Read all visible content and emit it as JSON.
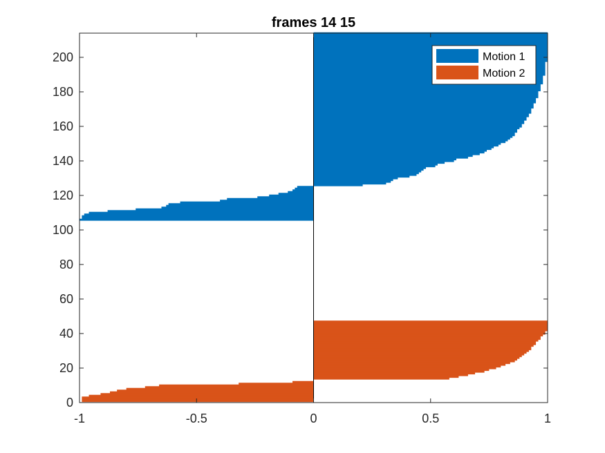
{
  "chart_data": {
    "type": "bar",
    "orientation": "horizontal",
    "title": "frames 14 15",
    "xlabel": "",
    "ylabel": "",
    "xlim": [
      -1,
      1
    ],
    "ylim": [
      0,
      214
    ],
    "xticks": [
      -1,
      -0.5,
      0,
      0.5,
      1
    ],
    "xtick_labels": [
      "-1",
      "-0.5",
      "0",
      "0.5",
      "1"
    ],
    "yticks": [
      0,
      20,
      40,
      60,
      80,
      100,
      120,
      140,
      160,
      180,
      200
    ],
    "ytick_labels": [
      "0",
      "20",
      "40",
      "60",
      "80",
      "100",
      "120",
      "140",
      "160",
      "180",
      "200"
    ],
    "grid": false,
    "legend_location": "top-right",
    "series": [
      {
        "name": "Motion 1",
        "color": "#0072BD",
        "points": [
          [
            106,
            -1.0
          ],
          [
            107,
            -0.99
          ],
          [
            108,
            -0.99
          ],
          [
            109,
            -0.98
          ],
          [
            110,
            -0.96
          ],
          [
            111,
            -0.88
          ],
          [
            112,
            -0.76
          ],
          [
            113,
            -0.65
          ],
          [
            114,
            -0.63
          ],
          [
            115,
            -0.62
          ],
          [
            116,
            -0.57
          ],
          [
            117,
            -0.4
          ],
          [
            118,
            -0.37
          ],
          [
            119,
            -0.24
          ],
          [
            120,
            -0.19
          ],
          [
            121,
            -0.15
          ],
          [
            122,
            -0.11
          ],
          [
            123,
            -0.09
          ],
          [
            124,
            -0.08
          ],
          [
            125,
            -0.07
          ],
          [
            126,
            0.21
          ],
          [
            127,
            0.31
          ],
          [
            128,
            0.33
          ],
          [
            129,
            0.34
          ],
          [
            130,
            0.36
          ],
          [
            131,
            0.41
          ],
          [
            132,
            0.44
          ],
          [
            133,
            0.45
          ],
          [
            134,
            0.46
          ],
          [
            135,
            0.47
          ],
          [
            136,
            0.48
          ],
          [
            137,
            0.52
          ],
          [
            138,
            0.53
          ],
          [
            139,
            0.56
          ],
          [
            140,
            0.6
          ],
          [
            141,
            0.61
          ],
          [
            142,
            0.66
          ],
          [
            143,
            0.68
          ],
          [
            144,
            0.71
          ],
          [
            145,
            0.73
          ],
          [
            146,
            0.74
          ],
          [
            147,
            0.76
          ],
          [
            148,
            0.77
          ],
          [
            149,
            0.79
          ],
          [
            150,
            0.8
          ],
          [
            151,
            0.82
          ],
          [
            152,
            0.83
          ],
          [
            153,
            0.84
          ],
          [
            154,
            0.85
          ],
          [
            155,
            0.86
          ],
          [
            156,
            0.86
          ],
          [
            157,
            0.87
          ],
          [
            158,
            0.87
          ],
          [
            159,
            0.88
          ],
          [
            160,
            0.89
          ],
          [
            161,
            0.89
          ],
          [
            162,
            0.9
          ],
          [
            163,
            0.9
          ],
          [
            164,
            0.91
          ],
          [
            165,
            0.91
          ],
          [
            166,
            0.92
          ],
          [
            167,
            0.92
          ],
          [
            168,
            0.93
          ],
          [
            169,
            0.93
          ],
          [
            170,
            0.93
          ],
          [
            171,
            0.94
          ],
          [
            172,
            0.94
          ],
          [
            173,
            0.94
          ],
          [
            174,
            0.95
          ],
          [
            175,
            0.95
          ],
          [
            176,
            0.95
          ],
          [
            177,
            0.96
          ],
          [
            178,
            0.96
          ],
          [
            179,
            0.96
          ],
          [
            180,
            0.96
          ],
          [
            181,
            0.97
          ],
          [
            182,
            0.97
          ],
          [
            183,
            0.97
          ],
          [
            184,
            0.97
          ],
          [
            185,
            0.98
          ],
          [
            186,
            0.98
          ],
          [
            187,
            0.98
          ],
          [
            188,
            0.98
          ],
          [
            189,
            0.98
          ],
          [
            190,
            0.99
          ],
          [
            191,
            0.99
          ],
          [
            192,
            0.99
          ],
          [
            193,
            0.99
          ],
          [
            194,
            0.99
          ],
          [
            195,
            0.99
          ],
          [
            196,
            0.99
          ],
          [
            197,
            0.99
          ],
          [
            198,
            1.0
          ],
          [
            199,
            1.0
          ],
          [
            200,
            1.0
          ],
          [
            201,
            1.0
          ],
          [
            202,
            1.0
          ],
          [
            203,
            1.0
          ],
          [
            204,
            1.0
          ],
          [
            205,
            1.0
          ],
          [
            206,
            1.0
          ],
          [
            207,
            1.0
          ],
          [
            208,
            1.0
          ],
          [
            209,
            1.0
          ],
          [
            210,
            1.0
          ],
          [
            211,
            1.0
          ],
          [
            212,
            1.0
          ],
          [
            213,
            1.0
          ],
          [
            214,
            1.0
          ]
        ]
      },
      {
        "name": "Motion 2",
        "color": "#D95319",
        "points": [
          [
            1,
            -0.99
          ],
          [
            2,
            -0.99
          ],
          [
            3,
            -0.99
          ],
          [
            4,
            -0.96
          ],
          [
            5,
            -0.91
          ],
          [
            6,
            -0.87
          ],
          [
            7,
            -0.84
          ],
          [
            8,
            -0.8
          ],
          [
            9,
            -0.72
          ],
          [
            10,
            -0.66
          ],
          [
            11,
            -0.32
          ],
          [
            12,
            -0.09
          ],
          [
            13,
            0.0
          ],
          [
            14,
            0.58
          ],
          [
            15,
            0.62
          ],
          [
            16,
            0.66
          ],
          [
            17,
            0.69
          ],
          [
            18,
            0.73
          ],
          [
            19,
            0.75
          ],
          [
            20,
            0.78
          ],
          [
            21,
            0.8
          ],
          [
            22,
            0.82
          ],
          [
            23,
            0.84
          ],
          [
            24,
            0.86
          ],
          [
            25,
            0.87
          ],
          [
            26,
            0.88
          ],
          [
            27,
            0.89
          ],
          [
            28,
            0.9
          ],
          [
            29,
            0.91
          ],
          [
            30,
            0.92
          ],
          [
            31,
            0.93
          ],
          [
            32,
            0.93
          ],
          [
            33,
            0.94
          ],
          [
            34,
            0.95
          ],
          [
            35,
            0.95
          ],
          [
            36,
            0.96
          ],
          [
            37,
            0.97
          ],
          [
            38,
            0.97
          ],
          [
            39,
            0.98
          ],
          [
            40,
            0.99
          ],
          [
            41,
            0.99
          ],
          [
            42,
            1.0
          ],
          [
            43,
            1.0
          ],
          [
            44,
            1.0
          ],
          [
            45,
            1.0
          ],
          [
            46,
            1.0
          ],
          [
            47,
            1.0
          ]
        ]
      }
    ]
  }
}
